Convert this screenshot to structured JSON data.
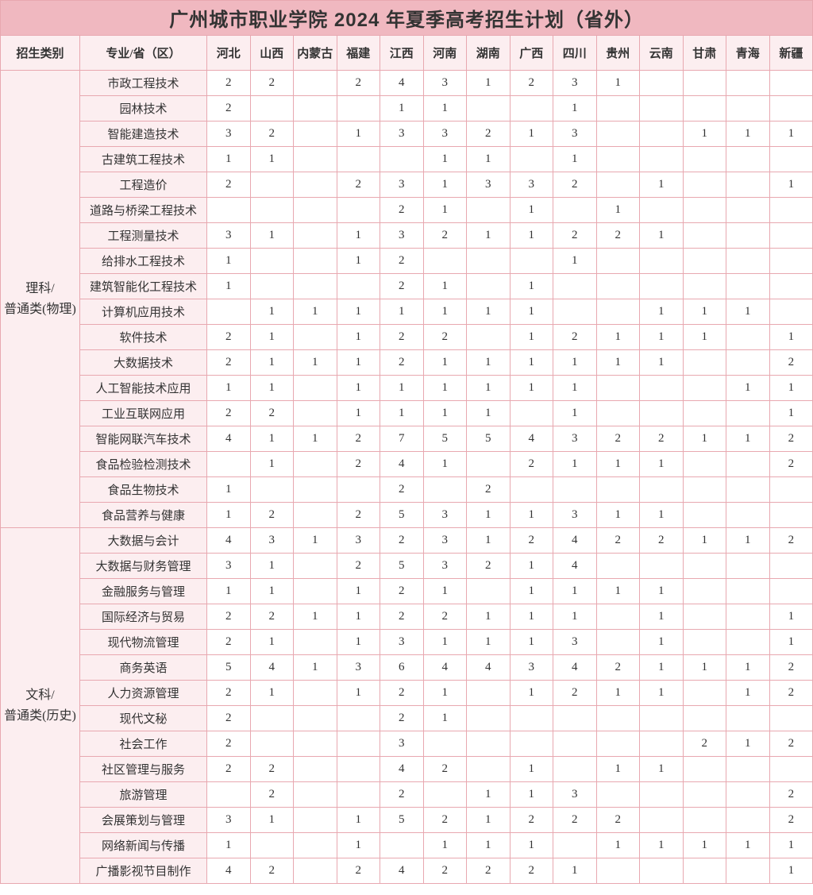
{
  "title": "广州城市职业学院 2024 年夏季高考招生计划（省外）",
  "headers": {
    "category": "招生类别",
    "major": "专业/省（区）",
    "provinces": [
      "河北",
      "山西",
      "内蒙古",
      "福建",
      "江西",
      "河南",
      "湖南",
      "广西",
      "四川",
      "贵州",
      "云南",
      "甘肃",
      "青海",
      "新疆"
    ]
  },
  "categories": [
    {
      "name_line1": "理科/",
      "name_line2": "普通类(物理)",
      "majors": [
        {
          "name": "市政工程技术",
          "vals": [
            "2",
            "2",
            "",
            "2",
            "4",
            "3",
            "1",
            "2",
            "3",
            "1",
            "",
            "",
            "",
            ""
          ]
        },
        {
          "name": "园林技术",
          "vals": [
            "2",
            "",
            "",
            "",
            "1",
            "1",
            "",
            "",
            "1",
            "",
            "",
            "",
            "",
            ""
          ]
        },
        {
          "name": "智能建造技术",
          "vals": [
            "3",
            "2",
            "",
            "1",
            "3",
            "3",
            "2",
            "1",
            "3",
            "",
            "",
            "1",
            "1",
            "1"
          ]
        },
        {
          "name": "古建筑工程技术",
          "vals": [
            "1",
            "1",
            "",
            "",
            "",
            "1",
            "1",
            "",
            "1",
            "",
            "",
            "",
            "",
            ""
          ]
        },
        {
          "name": "工程造价",
          "vals": [
            "2",
            "",
            "",
            "2",
            "3",
            "1",
            "3",
            "3",
            "2",
            "",
            "1",
            "",
            "",
            "1"
          ]
        },
        {
          "name": "道路与桥梁工程技术",
          "vals": [
            "",
            "",
            "",
            "",
            "2",
            "1",
            "",
            "1",
            "",
            "1",
            "",
            "",
            "",
            ""
          ]
        },
        {
          "name": "工程测量技术",
          "vals": [
            "3",
            "1",
            "",
            "1",
            "3",
            "2",
            "1",
            "1",
            "2",
            "2",
            "1",
            "",
            "",
            ""
          ]
        },
        {
          "name": "给排水工程技术",
          "vals": [
            "1",
            "",
            "",
            "1",
            "2",
            "",
            "",
            "",
            "1",
            "",
            "",
            "",
            "",
            ""
          ]
        },
        {
          "name": "建筑智能化工程技术",
          "vals": [
            "1",
            "",
            "",
            "",
            "2",
            "1",
            "",
            "1",
            "",
            "",
            "",
            "",
            "",
            ""
          ]
        },
        {
          "name": "计算机应用技术",
          "vals": [
            "",
            "1",
            "1",
            "1",
            "1",
            "1",
            "1",
            "1",
            "",
            "",
            "1",
            "1",
            "1",
            ""
          ]
        },
        {
          "name": "软件技术",
          "vals": [
            "2",
            "1",
            "",
            "1",
            "2",
            "2",
            "",
            "1",
            "2",
            "1",
            "1",
            "1",
            "",
            "1"
          ]
        },
        {
          "name": "大数据技术",
          "vals": [
            "2",
            "1",
            "1",
            "1",
            "2",
            "1",
            "1",
            "1",
            "1",
            "1",
            "1",
            "",
            "",
            "2"
          ]
        },
        {
          "name": "人工智能技术应用",
          "vals": [
            "1",
            "1",
            "",
            "1",
            "1",
            "1",
            "1",
            "1",
            "1",
            "",
            "",
            "",
            "1",
            "1"
          ]
        },
        {
          "name": "工业互联网应用",
          "vals": [
            "2",
            "2",
            "",
            "1",
            "1",
            "1",
            "1",
            "",
            "1",
            "",
            "",
            "",
            "",
            "1"
          ]
        },
        {
          "name": "智能网联汽车技术",
          "vals": [
            "4",
            "1",
            "1",
            "2",
            "7",
            "5",
            "5",
            "4",
            "3",
            "2",
            "2",
            "1",
            "1",
            "2"
          ]
        },
        {
          "name": "食品检验检测技术",
          "vals": [
            "",
            "1",
            "",
            "2",
            "4",
            "1",
            "",
            "2",
            "1",
            "1",
            "1",
            "",
            "",
            "2"
          ]
        },
        {
          "name": "食品生物技术",
          "vals": [
            "1",
            "",
            "",
            "",
            "2",
            "",
            "2",
            "",
            "",
            "",
            "",
            "",
            "",
            ""
          ]
        },
        {
          "name": "食品营养与健康",
          "vals": [
            "1",
            "2",
            "",
            "2",
            "5",
            "3",
            "1",
            "1",
            "3",
            "1",
            "1",
            "",
            "",
            ""
          ]
        }
      ]
    },
    {
      "name_line1": "文科/",
      "name_line2": "普通类(历史)",
      "majors": [
        {
          "name": "大数据与会计",
          "vals": [
            "4",
            "3",
            "1",
            "3",
            "2",
            "3",
            "1",
            "2",
            "4",
            "2",
            "2",
            "1",
            "1",
            "2"
          ]
        },
        {
          "name": "大数据与财务管理",
          "vals": [
            "3",
            "1",
            "",
            "2",
            "5",
            "3",
            "2",
            "1",
            "4",
            "",
            "",
            "",
            "",
            ""
          ]
        },
        {
          "name": "金融服务与管理",
          "vals": [
            "1",
            "1",
            "",
            "1",
            "2",
            "1",
            "",
            "1",
            "1",
            "1",
            "1",
            "",
            "",
            ""
          ]
        },
        {
          "name": "国际经济与贸易",
          "vals": [
            "2",
            "2",
            "1",
            "1",
            "2",
            "2",
            "1",
            "1",
            "1",
            "",
            "1",
            "",
            "",
            "1"
          ]
        },
        {
          "name": "现代物流管理",
          "vals": [
            "2",
            "1",
            "",
            "1",
            "3",
            "1",
            "1",
            "1",
            "3",
            "",
            "1",
            "",
            "",
            "1"
          ]
        },
        {
          "name": "商务英语",
          "vals": [
            "5",
            "4",
            "1",
            "3",
            "6",
            "4",
            "4",
            "3",
            "4",
            "2",
            "1",
            "1",
            "1",
            "2"
          ]
        },
        {
          "name": "人力资源管理",
          "vals": [
            "2",
            "1",
            "",
            "1",
            "2",
            "1",
            "",
            "1",
            "2",
            "1",
            "1",
            "",
            "1",
            "2"
          ]
        },
        {
          "name": "现代文秘",
          "vals": [
            "2",
            "",
            "",
            "",
            "2",
            "1",
            "",
            "",
            "",
            "",
            "",
            "",
            "",
            ""
          ]
        },
        {
          "name": "社会工作",
          "vals": [
            "2",
            "",
            "",
            "",
            "3",
            "",
            "",
            "",
            "",
            "",
            "",
            "2",
            "1",
            "2"
          ]
        },
        {
          "name": "社区管理与服务",
          "vals": [
            "2",
            "2",
            "",
            "",
            "4",
            "2",
            "",
            "1",
            "",
            "1",
            "1",
            "",
            "",
            ""
          ]
        },
        {
          "name": "旅游管理",
          "vals": [
            "",
            "2",
            "",
            "",
            "2",
            "",
            "1",
            "1",
            "3",
            "",
            "",
            "",
            "",
            "2"
          ]
        },
        {
          "name": "会展策划与管理",
          "vals": [
            "3",
            "1",
            "",
            "1",
            "5",
            "2",
            "1",
            "2",
            "2",
            "2",
            "",
            "",
            "",
            "2"
          ]
        },
        {
          "name": "网络新闻与传播",
          "vals": [
            "1",
            "",
            "",
            "1",
            "",
            "1",
            "1",
            "1",
            "",
            "1",
            "1",
            "1",
            "1",
            "1"
          ]
        },
        {
          "name": "广播影视节目制作",
          "vals": [
            "4",
            "2",
            "",
            "2",
            "4",
            "2",
            "2",
            "2",
            "1",
            "",
            "",
            "",
            "",
            "1"
          ]
        }
      ]
    }
  ],
  "colors": {
    "title_bg": "#f0b8c0",
    "header_bg": "#fceef0",
    "border": "#e8a8b0",
    "cell_bg": "#ffffff"
  }
}
